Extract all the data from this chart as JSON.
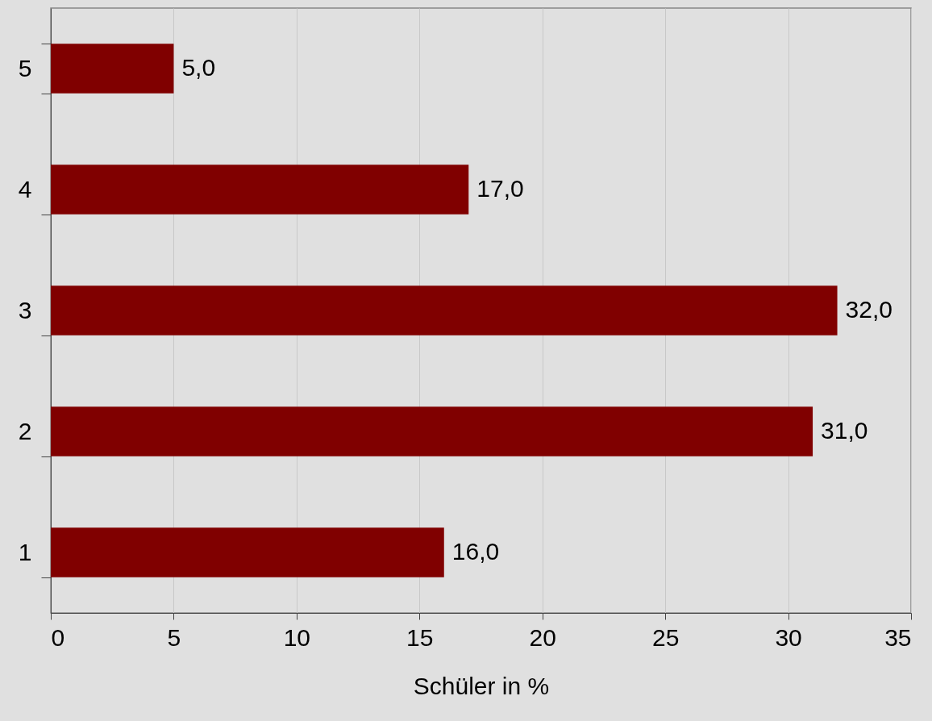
{
  "chart_data": {
    "type": "bar",
    "orientation": "horizontal",
    "categories": [
      "5",
      "4",
      "3",
      "2",
      "1"
    ],
    "values": [
      5,
      17,
      32,
      31,
      16
    ],
    "value_labels": [
      "5,0",
      "17,0",
      "32,0",
      "31,0",
      "16,0"
    ],
    "color": "#800000",
    "xlabel": "Schüler in %",
    "xlim": [
      0,
      35
    ],
    "xticks": [
      0,
      5,
      10,
      15,
      20,
      25,
      30,
      35
    ],
    "grid": "x"
  }
}
